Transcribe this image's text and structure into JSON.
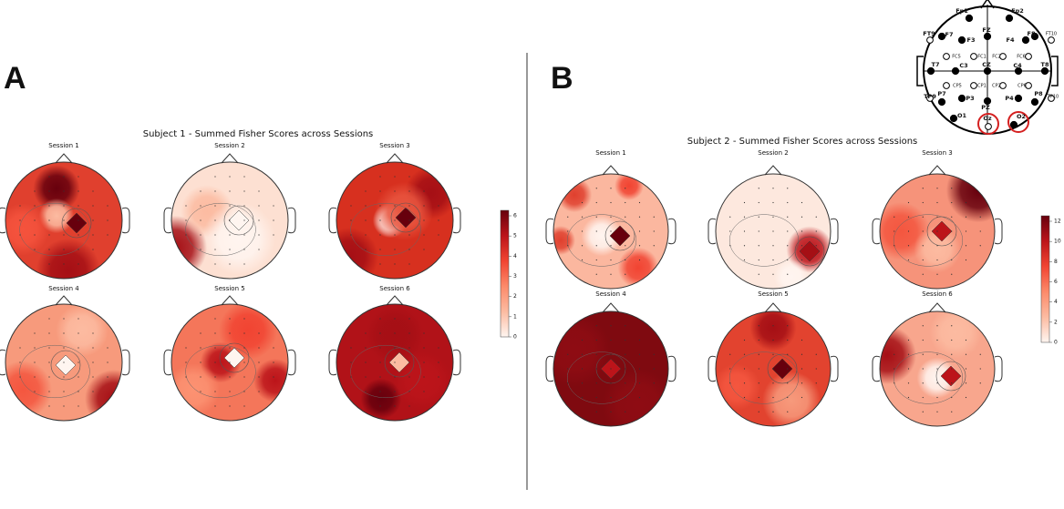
{
  "panels": [
    {
      "label": "A",
      "title": "Subject 1 - Summed Fisher Scores across Sessions",
      "sessions": [
        "Session 1",
        "Session 2",
        "Session 3",
        "Session 4",
        "Session 5",
        "Session 6"
      ],
      "colorbar": {
        "ticks": [
          0,
          1,
          2,
          3,
          4,
          5,
          6
        ]
      }
    },
    {
      "label": "B",
      "title": "Subject 2 - Summed Fisher Scores across Sessions",
      "sessions": [
        "Session 1",
        "Session 2",
        "Session 3",
        "Session 4",
        "Session 5",
        "Session 6"
      ],
      "colorbar": {
        "ticks": [
          0,
          2,
          4,
          6,
          8,
          10,
          12
        ]
      }
    }
  ],
  "electrode_map": {
    "electrodes": [
      "Fp1",
      "Fp2",
      "F7",
      "F3",
      "FZ",
      "F4",
      "F8",
      "FT9",
      "FT10",
      "FC5",
      "FC1",
      "FC2",
      "FC6",
      "T7",
      "C3",
      "CZ",
      "C4",
      "T8",
      "CP5",
      "CP1",
      "CP2",
      "CP6",
      "TP9",
      "TP10",
      "P7",
      "P3",
      "PZ",
      "P4",
      "P8",
      "O1",
      "Oz",
      "O2"
    ]
  }
}
